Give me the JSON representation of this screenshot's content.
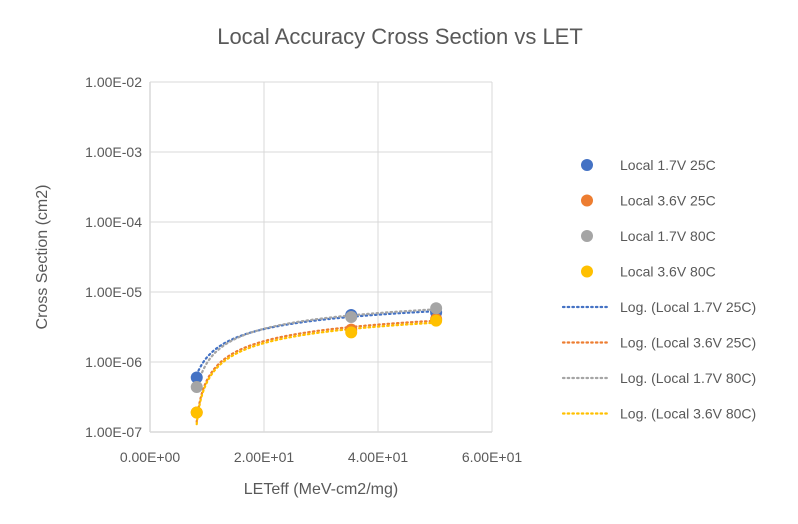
{
  "chart_data": {
    "type": "scatter",
    "title": "Local Accuracy Cross Section vs LET",
    "xlabel": "LETeff (MeV-cm2/mg)",
    "ylabel": "Cross Section (cm2)",
    "xlim": [
      0,
      60
    ],
    "ylim": [
      1e-07,
      0.01
    ],
    "yscale": "log",
    "grid": true,
    "legend_position": "right",
    "x_ticks": [
      "0.00E+00",
      "2.00E+01",
      "4.00E+01",
      "6.00E+01"
    ],
    "y_ticks": [
      "1.00E-07",
      "1.00E-06",
      "1.00E-05",
      "1.00E-04",
      "1.00E-03",
      "1.00E-02"
    ],
    "series": [
      {
        "name": "Local 1.7V 25C",
        "color": "#4472C4",
        "x": [
          8.2,
          35.3,
          50.2
        ],
        "y": [
          6e-07,
          4.7e-06,
          5.1e-06
        ]
      },
      {
        "name": "Local 3.6V 25C",
        "color": "#ED7D31",
        "x": [
          8.2,
          35.3,
          50.2
        ],
        "y": [
          1.9e-07,
          2.9e-06,
          4.1e-06
        ]
      },
      {
        "name": "Local 1.7V 80C",
        "color": "#A5A5A5",
        "x": [
          8.2,
          35.3,
          50.2
        ],
        "y": [
          4.4e-07,
          4.4e-06,
          5.85e-06
        ]
      },
      {
        "name": "Local 3.6V 80C",
        "color": "#FFC000",
        "x": [
          8.2,
          35.3,
          50.2
        ],
        "y": [
          1.9e-07,
          2.65e-06,
          3.9e-06
        ]
      }
    ],
    "trendlines": [
      {
        "name": "Log. (Local 1.7V 25C)",
        "type": "logarithmic",
        "of": 0
      },
      {
        "name": "Log. (Local 3.6V 25C)",
        "type": "logarithmic",
        "of": 1
      },
      {
        "name": "Log. (Local 1.7V 80C)",
        "type": "logarithmic",
        "of": 2
      },
      {
        "name": "Log. (Local 3.6V 80C)",
        "type": "logarithmic",
        "of": 3
      }
    ]
  }
}
